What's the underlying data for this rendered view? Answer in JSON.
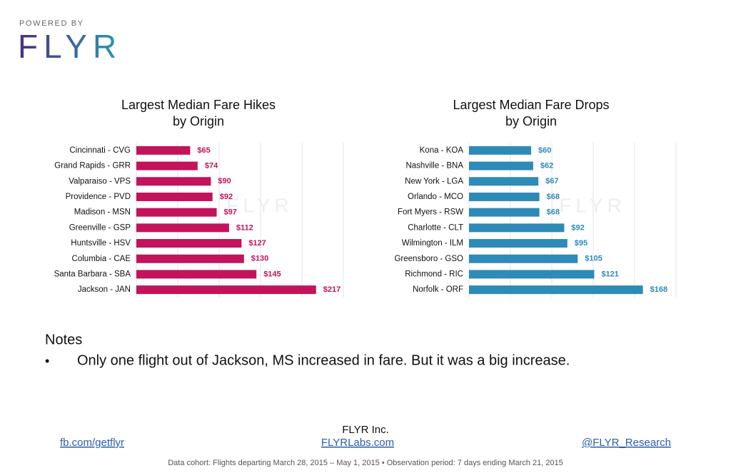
{
  "brand": {
    "powered_by": "POWERED BY",
    "logo": "FLYR"
  },
  "chart_data": [
    {
      "type": "bar",
      "orientation": "horizontal",
      "title": [
        "Largest Median Fare Hikes",
        "by Origin"
      ],
      "categories": [
        "Cincinnati - CVG",
        "Grand Rapids - GRR",
        "Valparaiso - VPS",
        "Providence - PVD",
        "Madison - MSN",
        "Greenville - GSP",
        "Huntsville - HSV",
        "Columbia - CAE",
        "Santa Barbara - SBA",
        "Jackson - JAN"
      ],
      "values": [
        65,
        74,
        90,
        92,
        97,
        112,
        127,
        130,
        145,
        217
      ],
      "value_labels": [
        "$65",
        "$74",
        "$90",
        "$92",
        "$97",
        "$112",
        "$127",
        "$130",
        "$145",
        "$217"
      ],
      "color": "#c2135b",
      "xlim": [
        0,
        250
      ],
      "xticks": [
        0,
        50,
        100,
        150,
        200,
        250
      ],
      "grid": true
    },
    {
      "type": "bar",
      "orientation": "horizontal",
      "title": [
        "Largest Median Fare Drops",
        "by Origin"
      ],
      "categories": [
        "Kona - KOA",
        "Nashville - BNA",
        "New York - LGA",
        "Orlando - MCO",
        "Fort Myers - RSW",
        "Charlotte - CLT",
        "Wilmington - ILM",
        "Greensboro - GSO",
        "Richmond - RIC",
        "Norfolk - ORF"
      ],
      "values": [
        60,
        62,
        67,
        68,
        68,
        92,
        95,
        105,
        121,
        168
      ],
      "value_labels": [
        "$60",
        "$62",
        "$67",
        "$68",
        "$68",
        "$92",
        "$95",
        "$105",
        "$121",
        "$168"
      ],
      "color": "#2e8ab6",
      "xlim": [
        0,
        200
      ],
      "xticks": [
        0,
        40,
        80,
        120,
        160,
        200
      ],
      "grid": true
    }
  ],
  "notes": {
    "title": "Notes",
    "bullet": "•",
    "items": [
      "Only one flight out of Jackson, MS increased in fare. But it was a big increase."
    ]
  },
  "footer": {
    "company": "FLYR Inc.",
    "links": [
      "fb.com/getflyr",
      "FLYRLabs.com",
      "@FLYR_Research"
    ],
    "cohort": "Data cohort: Flights departing March 28, 2015 – May 1, 2015 • Observation period: 7 days ending March 21, 2015"
  }
}
